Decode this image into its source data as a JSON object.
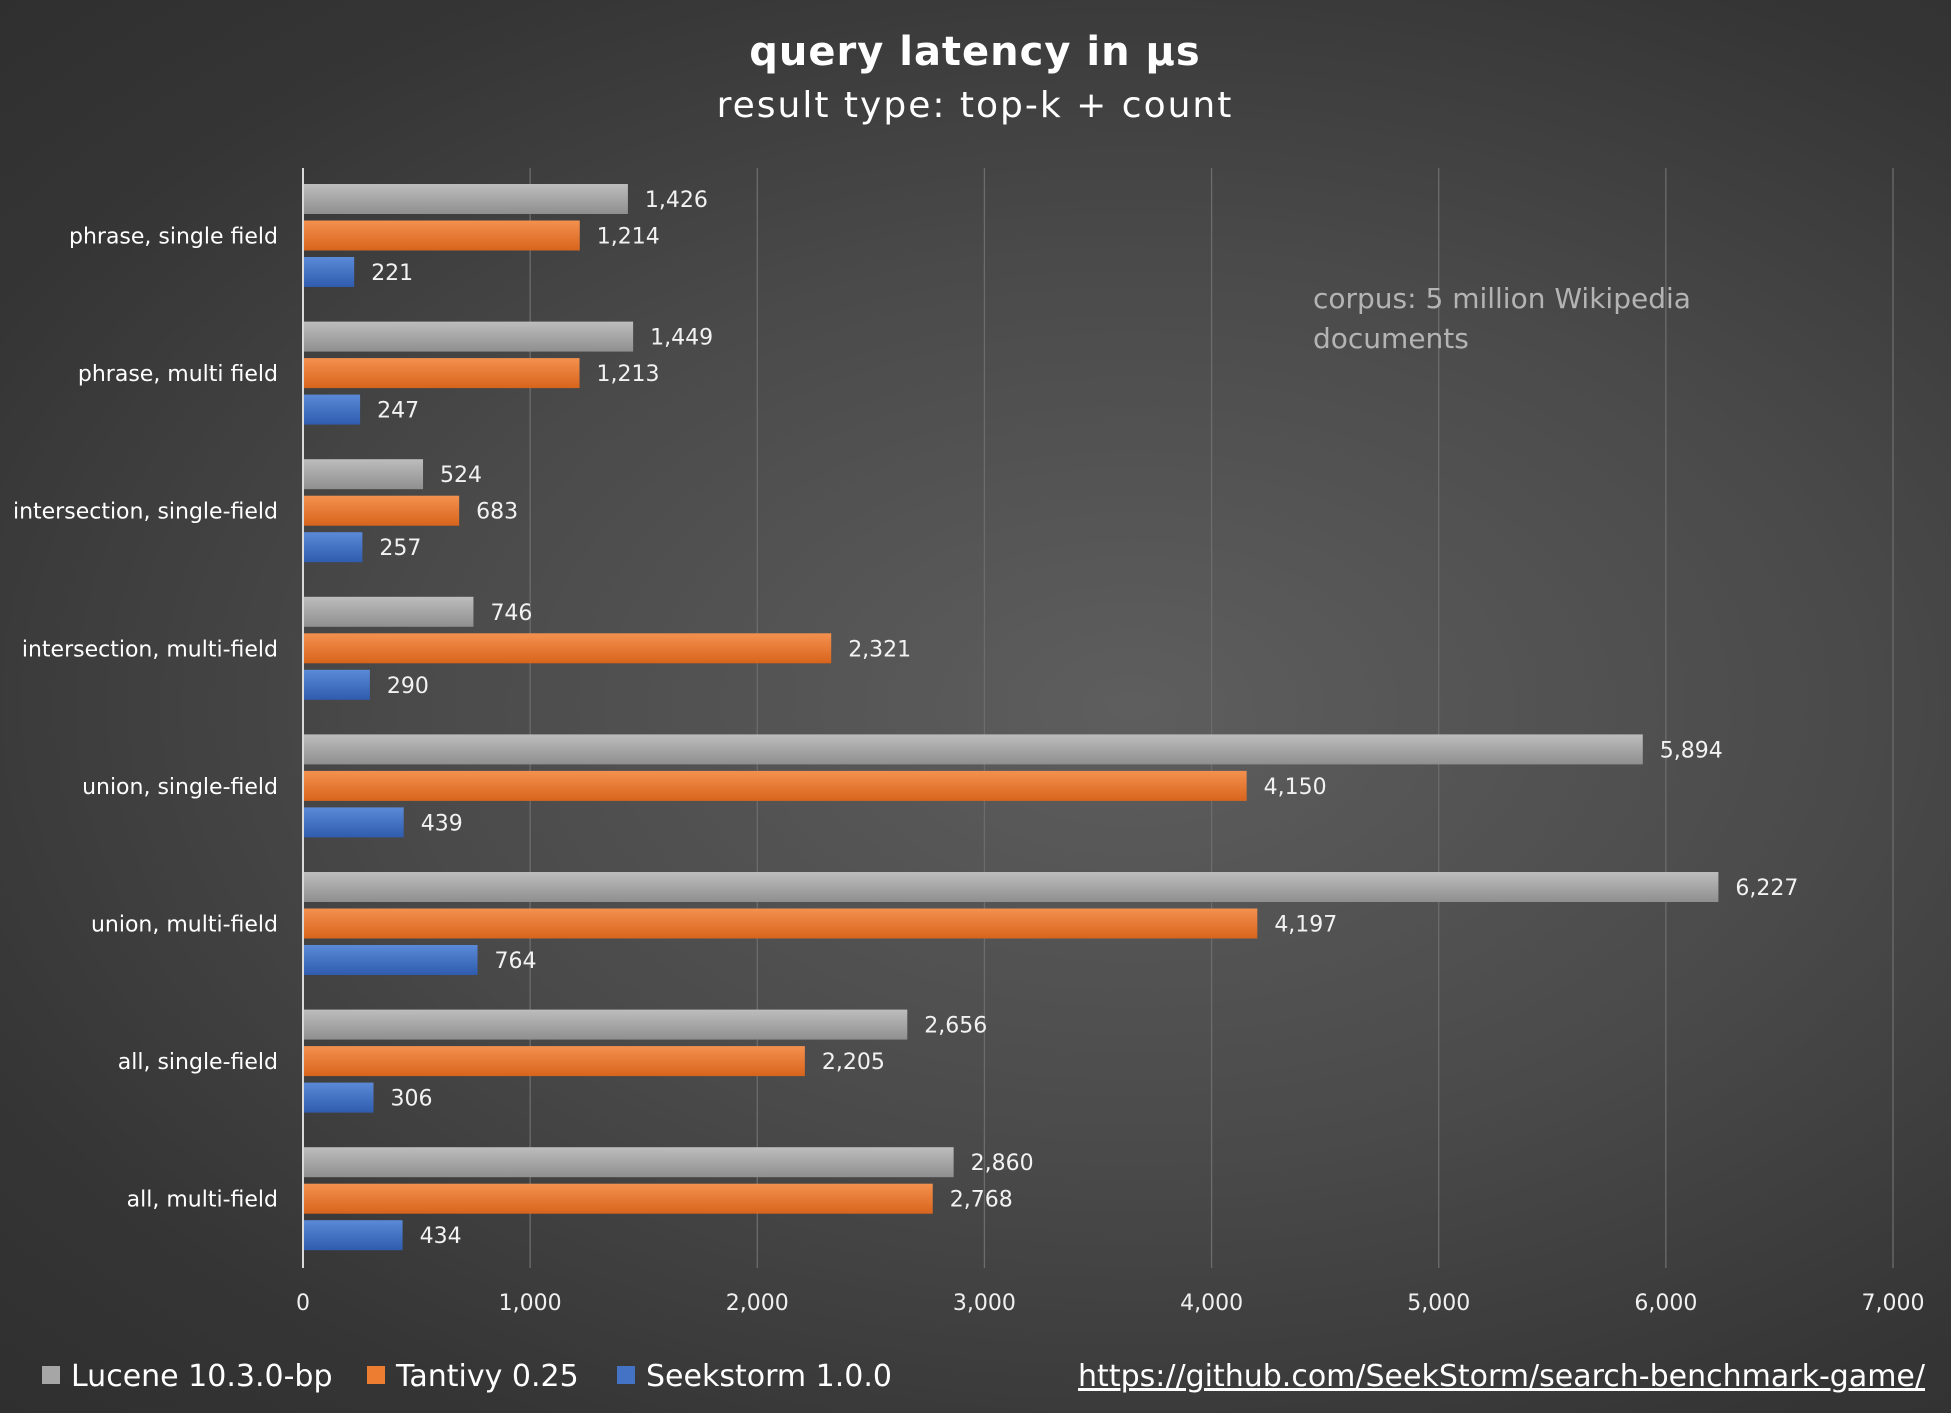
{
  "chart_data": {
    "type": "bar",
    "orientation": "horizontal",
    "title": "query latency in µs",
    "subtitle": "result type: top-k + count",
    "categories": [
      "phrase, single field",
      "phrase, multi field",
      "intersection, single-field",
      "intersection, multi-field",
      "union, single-field",
      "union, multi-field",
      "all, single-field",
      "all, multi-field"
    ],
    "series": [
      {
        "name": "Lucene 10.3.0-bp",
        "color": "#a6a6a6",
        "values": [
          1426,
          1449,
          524,
          746,
          5894,
          6227,
          2656,
          2860
        ],
        "labels": [
          "1,426",
          "1,449",
          "524",
          "746",
          "5,894",
          "6,227",
          "2,656",
          "2,860"
        ]
      },
      {
        "name": "Tantivy 0.25",
        "color": "#ed7d31",
        "values": [
          1214,
          1213,
          683,
          2321,
          4150,
          4197,
          2205,
          2768
        ],
        "labels": [
          "1,214",
          "1,213",
          "683",
          "2,321",
          "4,150",
          "4,197",
          "2,205",
          "2,768"
        ]
      },
      {
        "name": "Seekstorm 1.0.0",
        "color": "#4472c4",
        "values": [
          221,
          247,
          257,
          290,
          439,
          764,
          306,
          434
        ],
        "labels": [
          "221",
          "247",
          "257",
          "290",
          "439",
          "764",
          "306",
          "434"
        ]
      }
    ],
    "xlim": [
      0,
      7000
    ],
    "xticks": [
      0,
      1000,
      2000,
      3000,
      4000,
      5000,
      6000,
      7000
    ],
    "xtick_labels": [
      "0",
      "1,000",
      "2,000",
      "3,000",
      "4,000",
      "5,000",
      "6,000",
      "7,000"
    ],
    "grid": "vertical",
    "legend_position": "bottom-left",
    "annotation": [
      "corpus: 5 million Wikipedia",
      "documents"
    ],
    "source_link": "https://github.com/SeekStorm/search-benchmark-game/"
  }
}
